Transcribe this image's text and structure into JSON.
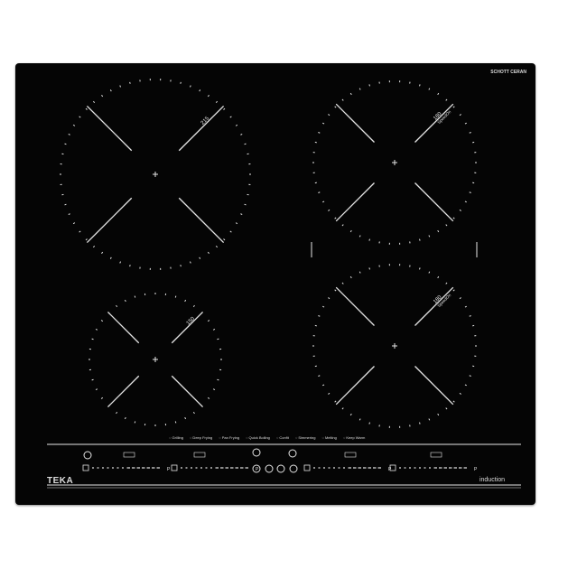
{
  "brand": "TEKA",
  "glass_brand": "SCHOTT CERAN",
  "product_label": "induction",
  "zones": [
    {
      "label": "215",
      "sub": ""
    },
    {
      "label": "180",
      "sub": "SpeedOn"
    },
    {
      "label": "150",
      "sub": ""
    },
    {
      "label": "180",
      "sub": "SpeedOn"
    }
  ],
  "functions": [
    "Grilling",
    "Deep Frying",
    "Pan Frying",
    "Quick Boiling",
    "Confit",
    "Simmering",
    "Melting",
    "Keep Warm"
  ],
  "slider_end": "P",
  "colors": {
    "glass": "#050505",
    "print": "#e6e6e6"
  }
}
